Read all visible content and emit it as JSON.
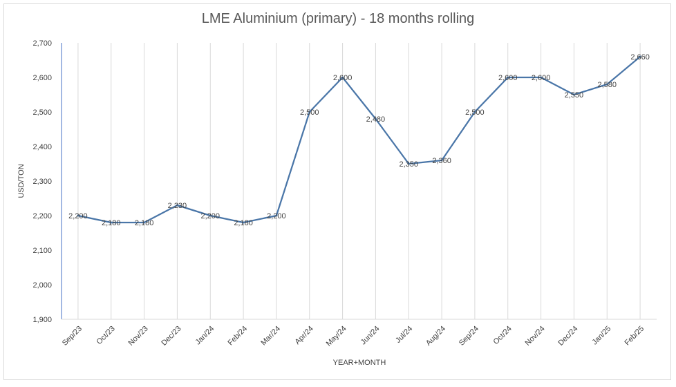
{
  "chart_data": {
    "type": "line",
    "title": "LME Aluminium (primary) - 18 months rolling",
    "xlabel": "YEAR+MONTH",
    "ylabel": "USD/TON",
    "ylim": [
      1900,
      2700
    ],
    "yticks": [
      "1,900",
      "2,000",
      "2,100",
      "2,200",
      "2,300",
      "2,400",
      "2,500",
      "2,600",
      "2,700"
    ],
    "categories": [
      "Sep/23",
      "Oct/23",
      "Nov/23",
      "Dec/23",
      "Jan/24",
      "Feb/24",
      "Mar/24",
      "Apr/24",
      "May/24",
      "Jun/24",
      "Jul/24",
      "Aug/24",
      "Sep/24",
      "Oct/24",
      "Nov/24",
      "Dec/24",
      "Jan/25",
      "Feb/25"
    ],
    "series": [
      {
        "values": [
          2200,
          2180,
          2180,
          2230,
          2200,
          2180,
          2200,
          2500,
          2600,
          2480,
          2350,
          2360,
          2500,
          2600,
          2600,
          2550,
          2580,
          2660
        ],
        "labels": [
          "2,200",
          "2,180",
          "2,180",
          "2,230",
          "2,200",
          "2,180",
          "2,200",
          "2,500",
          "2,600",
          "2,480",
          "2,350",
          "2,360",
          "2,500",
          "2,600",
          "2,600",
          "2,550",
          "2,580",
          "2,660"
        ]
      }
    ],
    "data_labels": true,
    "grid": "vertical",
    "legend": "none",
    "colors": {
      "line": "#4a76a8",
      "grid": "#d9d9d9",
      "axis": "#4472c4"
    }
  }
}
